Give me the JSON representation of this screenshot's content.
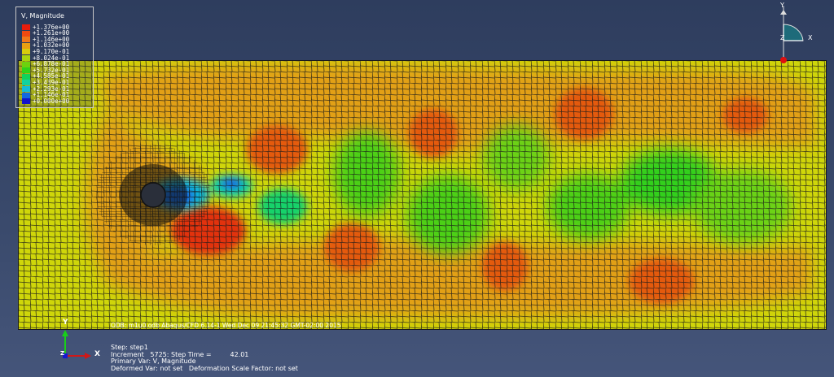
{
  "legend": {
    "title": "V, Magnitude",
    "entries": [
      {
        "label": "+1.376e+00",
        "color": "#e81c0c"
      },
      {
        "label": "+1.261e+00",
        "color": "#f04a10"
      },
      {
        "label": "+1.146e+00",
        "color": "#f0781a"
      },
      {
        "label": "+1.032e+00",
        "color": "#e8a012"
      },
      {
        "label": "+9.170e-01",
        "color": "#d6cc0e"
      },
      {
        "label": "+8.024e-01",
        "color": "#a8d40e"
      },
      {
        "label": "+6.878e-01",
        "color": "#6cd20e"
      },
      {
        "label": "+5.732e-01",
        "color": "#2ed21a"
      },
      {
        "label": "+4.585e-01",
        "color": "#10d25a"
      },
      {
        "label": "+3.439e-01",
        "color": "#10d2a0"
      },
      {
        "label": "+2.293e-01",
        "color": "#12bcd8"
      },
      {
        "label": "+1.146e-01",
        "color": "#1468e0"
      },
      {
        "label": "+0.000e+00",
        "color": "#1414c8"
      }
    ]
  },
  "odb_line": "ODB: m1u0.odb    Abaqus/CFD 6.14-1    Wed Dec 09 21:45:32 GMT-02:00 2015",
  "status": {
    "step": "Step: step1",
    "increment": "Increment   5725: Step Time =         42.01",
    "primary_var": "Primary Var: V, Magnitude",
    "deformed_var": "Deformed Var: not set   Deformation Scale Factor: not set"
  },
  "axes": {
    "x": "X",
    "y": "Y",
    "z": "Z"
  },
  "colors": {
    "background_top": "#2e3d5e",
    "background_bottom": "#45557a",
    "field_base": "#cfd60a",
    "mesh_line": "#1a1a1a",
    "obstacle": "#2a2f3a"
  }
}
